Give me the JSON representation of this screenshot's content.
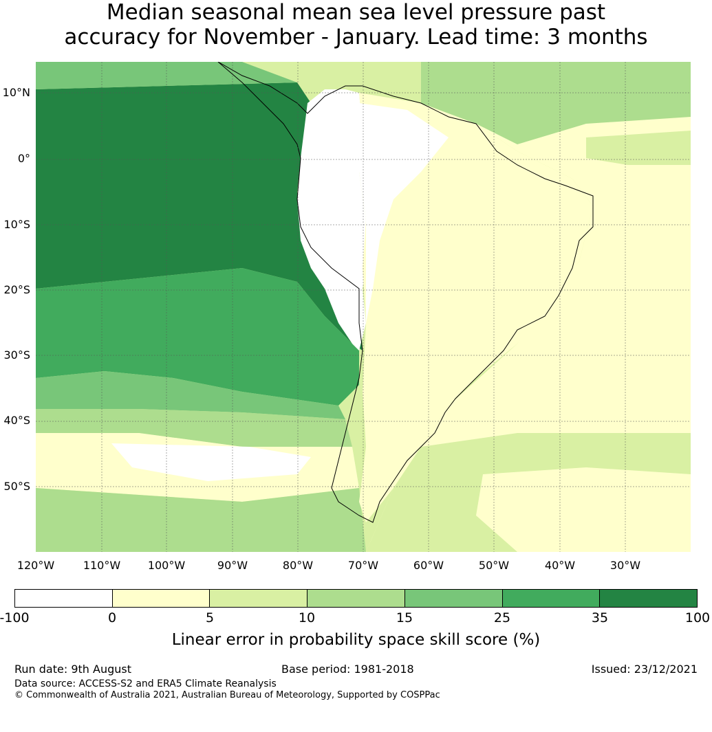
{
  "title": {
    "line1": "Median seasonal mean sea level pressure past",
    "line2": "accuracy for November - January. Lead time: 3 months"
  },
  "map": {
    "region": "South America and eastern Pacific",
    "lat_labels": [
      "10°N",
      "0°",
      "10°S",
      "20°S",
      "30°S",
      "40°S",
      "50°S"
    ],
    "lon_labels": [
      "120°W",
      "110°W",
      "100°W",
      "90°W",
      "80°W",
      "70°W",
      "60°W",
      "50°W",
      "40°W",
      "30°W"
    ]
  },
  "colorbar": {
    "ticks": [
      "-100",
      "0",
      "5",
      "10",
      "15",
      "25",
      "35",
      "100"
    ],
    "colors": [
      "#ffffff",
      "#ffffcc",
      "#d9f0a3",
      "#addd8e",
      "#78c679",
      "#41ab5d",
      "#238443"
    ],
    "label": "Linear error in probability space skill score (%)"
  },
  "footer": {
    "run_date": "Run date: 9th August",
    "base_period": "Base period: 1981-2018",
    "issued": "Issued: 23/12/2021",
    "data_source": "Data source: ACCESS-S2 and ERA5 Climate Reanalysis",
    "copyright": "© Commonwealth of Australia 2021, Australian Bureau of Meteorology, Supported by COSPPac"
  }
}
